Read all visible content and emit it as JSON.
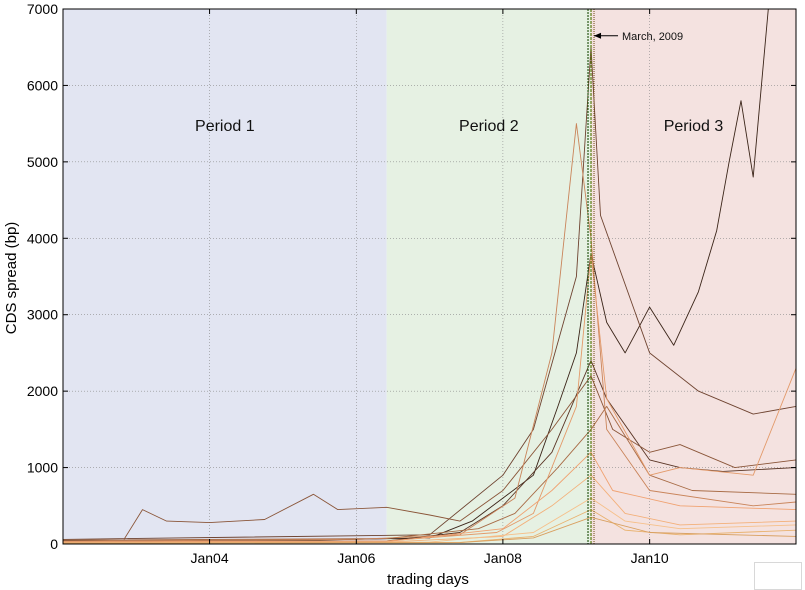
{
  "chart_data": {
    "type": "line",
    "xlabel": "trading days",
    "ylabel": "CDS spread (bp)",
    "xlim": [
      "2002-01-01",
      "2011-12-31"
    ],
    "ylim": [
      0,
      7000
    ],
    "y_ticks": [
      0,
      1000,
      2000,
      3000,
      4000,
      5000,
      6000,
      7000
    ],
    "x_ticks": [
      {
        "date": "2004-01-01",
        "label": "Jan04"
      },
      {
        "date": "2006-01-01",
        "label": "Jan06"
      },
      {
        "date": "2008-01-01",
        "label": "Jan08"
      },
      {
        "date": "2010-01-01",
        "label": "Jan10"
      }
    ],
    "grid": true,
    "periods": [
      {
        "label": "Period 1",
        "start": "2002-01-01",
        "end": "2006-06-01",
        "color": "#e2e5f2"
      },
      {
        "label": "Period 2",
        "start": "2006-06-01",
        "end": "2009-03-15",
        "color": "#e6f1e3"
      },
      {
        "label": "Period 3",
        "start": "2009-03-15",
        "end": "2011-12-31",
        "color": "#f4e2e0"
      }
    ],
    "annotation": {
      "text": "March, 2009",
      "date": "2009-03-15",
      "y": 6650
    },
    "series": [
      {
        "color": "#3a2418",
        "points": [
          [
            "2002-01-01",
            40
          ],
          [
            "2005-06-01",
            50
          ],
          [
            "2007-01-01",
            80
          ],
          [
            "2007-08-01",
            300
          ],
          [
            "2008-01-01",
            600
          ],
          [
            "2008-06-01",
            900
          ],
          [
            "2008-10-01",
            1800
          ],
          [
            "2009-01-01",
            2500
          ],
          [
            "2009-03-15",
            3800
          ],
          [
            "2009-06-01",
            2900
          ],
          [
            "2009-09-01",
            2500
          ],
          [
            "2010-01-01",
            3100
          ],
          [
            "2010-05-01",
            2600
          ],
          [
            "2010-09-01",
            3300
          ],
          [
            "2010-12-01",
            4100
          ],
          [
            "2011-02-01",
            5000
          ],
          [
            "2011-04-01",
            5800
          ],
          [
            "2011-06-01",
            4800
          ],
          [
            "2011-07-15",
            6100
          ],
          [
            "2011-08-15",
            7000
          ]
        ]
      },
      {
        "color": "#5a3525",
        "points": [
          [
            "2002-01-01",
            30
          ],
          [
            "2006-06-01",
            40
          ],
          [
            "2007-06-01",
            150
          ],
          [
            "2008-01-01",
            500
          ],
          [
            "2008-09-01",
            1200
          ],
          [
            "2009-03-15",
            2400
          ],
          [
            "2009-06-01",
            1900
          ],
          [
            "2010-01-01",
            1100
          ],
          [
            "2010-06-01",
            1000
          ],
          [
            "2011-01-01",
            950
          ],
          [
            "2011-12-31",
            1000
          ]
        ]
      },
      {
        "color": "#6e4330",
        "points": [
          [
            "2002-01-01",
            60
          ],
          [
            "2007-01-01",
            120
          ],
          [
            "2008-01-01",
            900
          ],
          [
            "2008-06-01",
            1500
          ],
          [
            "2009-01-01",
            3500
          ],
          [
            "2009-03-15",
            6500
          ],
          [
            "2009-05-01",
            4300
          ],
          [
            "2010-01-01",
            2500
          ],
          [
            "2010-09-01",
            2000
          ],
          [
            "2011-06-01",
            1700
          ],
          [
            "2011-12-31",
            1800
          ]
        ]
      },
      {
        "color": "#8a5538",
        "points": [
          [
            "2002-11-01",
            60
          ],
          [
            "2003-02-01",
            450
          ],
          [
            "2003-06-01",
            300
          ],
          [
            "2004-01-01",
            280
          ],
          [
            "2004-10-01",
            320
          ],
          [
            "2005-06-01",
            650
          ],
          [
            "2005-10-01",
            450
          ],
          [
            "2006-06-01",
            480
          ],
          [
            "2007-01-01",
            380
          ],
          [
            "2007-06-01",
            300
          ],
          [
            "2008-01-01",
            700
          ],
          [
            "2008-09-01",
            1500
          ],
          [
            "2009-03-15",
            2200
          ],
          [
            "2009-07-01",
            1500
          ],
          [
            "2010-01-01",
            1200
          ],
          [
            "2010-06-01",
            1300
          ],
          [
            "2011-03-01",
            1000
          ],
          [
            "2011-12-31",
            1100
          ]
        ]
      },
      {
        "color": "#a86b45",
        "points": [
          [
            "2002-01-01",
            50
          ],
          [
            "2006-06-01",
            70
          ],
          [
            "2007-09-01",
            200
          ],
          [
            "2008-03-01",
            400
          ],
          [
            "2008-10-01",
            1000
          ],
          [
            "2009-03-15",
            1500
          ],
          [
            "2009-06-01",
            1800
          ],
          [
            "2010-01-01",
            900
          ],
          [
            "2010-08-01",
            700
          ],
          [
            "2011-12-31",
            650
          ]
        ]
      },
      {
        "color": "#c9845a",
        "points": [
          [
            "2002-01-01",
            35
          ],
          [
            "2006-01-01",
            60
          ],
          [
            "2007-06-01",
            120
          ],
          [
            "2008-03-01",
            600
          ],
          [
            "2008-09-01",
            2500
          ],
          [
            "2009-01-01",
            5500
          ],
          [
            "2009-03-15",
            4000
          ],
          [
            "2009-06-01",
            1500
          ],
          [
            "2010-01-01",
            700
          ],
          [
            "2011-06-01",
            500
          ],
          [
            "2011-12-31",
            550
          ]
        ]
      },
      {
        "color": "#e39a6a",
        "points": [
          [
            "2002-01-01",
            30
          ],
          [
            "2006-06-01",
            40
          ],
          [
            "2007-12-01",
            150
          ],
          [
            "2008-06-01",
            400
          ],
          [
            "2009-01-01",
            1800
          ],
          [
            "2009-03-15",
            3800
          ],
          [
            "2009-06-01",
            1900
          ],
          [
            "2010-01-01",
            900
          ],
          [
            "2010-06-01",
            1000
          ],
          [
            "2011-06-01",
            900
          ],
          [
            "2011-12-31",
            2300
          ]
        ]
      },
      {
        "color": "#f0a271",
        "points": [
          [
            "2002-01-01",
            25
          ],
          [
            "2006-06-01",
            30
          ],
          [
            "2008-01-01",
            200
          ],
          [
            "2008-09-01",
            700
          ],
          [
            "2009-03-15",
            1200
          ],
          [
            "2009-07-01",
            700
          ],
          [
            "2010-06-01",
            500
          ],
          [
            "2011-12-31",
            450
          ]
        ]
      },
      {
        "color": "#f3b07a",
        "points": [
          [
            "2002-01-01",
            20
          ],
          [
            "2006-06-01",
            25
          ],
          [
            "2008-01-01",
            100
          ],
          [
            "2008-09-01",
            500
          ],
          [
            "2009-03-15",
            900
          ],
          [
            "2009-09-01",
            400
          ],
          [
            "2010-06-01",
            250
          ],
          [
            "2011-12-31",
            300
          ]
        ]
      },
      {
        "color": "#f6c08a",
        "points": [
          [
            "2002-01-01",
            15
          ],
          [
            "2007-01-01",
            25
          ],
          [
            "2008-06-01",
            150
          ],
          [
            "2009-03-15",
            600
          ],
          [
            "2009-09-01",
            300
          ],
          [
            "2010-06-01",
            200
          ],
          [
            "2011-12-31",
            250
          ]
        ]
      },
      {
        "color": "#e9b26f",
        "points": [
          [
            "2002-01-01",
            10
          ],
          [
            "2007-06-01",
            20
          ],
          [
            "2008-06-01",
            100
          ],
          [
            "2009-03-15",
            450
          ],
          [
            "2009-09-01",
            180
          ],
          [
            "2010-06-01",
            120
          ],
          [
            "2011-12-31",
            180
          ]
        ]
      },
      {
        "color": "#d9a060",
        "points": [
          [
            "2002-01-01",
            12
          ],
          [
            "2007-06-01",
            18
          ],
          [
            "2008-06-01",
            80
          ],
          [
            "2009-03-15",
            350
          ],
          [
            "2010-01-01",
            150
          ],
          [
            "2011-12-31",
            100
          ]
        ]
      }
    ]
  }
}
